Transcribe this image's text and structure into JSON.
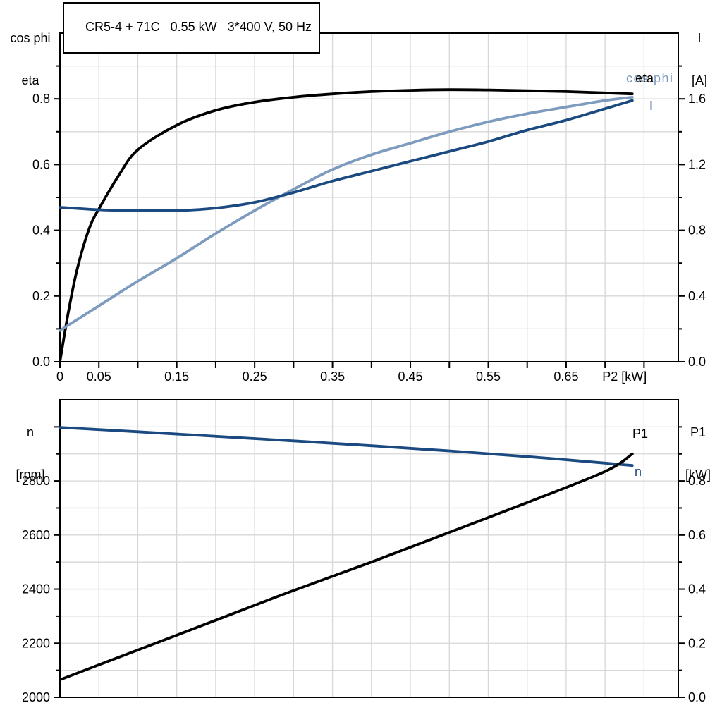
{
  "colors": {
    "black": "#000000",
    "light_blue": "#7d9bbe",
    "dark_blue": "#1a4a80",
    "grid": "#d7d7d7",
    "background": "#ffffff"
  },
  "labels": {
    "top_left_line1": "cos phi",
    "top_left_line2": "eta",
    "top_right_line1": "I",
    "top_right_line2": "[A]",
    "bottom_left_line1": "n",
    "bottom_left_line2": "[rpm]",
    "bottom_right_line1": "P1",
    "bottom_right_line2": "[kW]",
    "curve_cos_phi": "cos phi",
    "curve_eta": "eta",
    "curve_I": "I",
    "curve_P1": "P1",
    "curve_n": "n"
  },
  "chart_data": [
    {
      "type": "line",
      "title": "CR5-4 + 71C   0.55 kW   3*400 V, 50 Hz",
      "x_axis": {
        "label": "P2 [kW]",
        "min": 0,
        "max": 0.794,
        "grid": [
          0.05,
          0.1,
          0.15,
          0.2,
          0.25,
          0.3,
          0.35,
          0.4,
          0.45,
          0.5,
          0.55,
          0.6,
          0.65,
          0.7,
          0.75
        ],
        "ticks": [
          0,
          0.05,
          0.1,
          0.15,
          0.2,
          0.25,
          0.3,
          0.35,
          0.4,
          0.45,
          0.5,
          0.55,
          0.6,
          0.65,
          0.7,
          0.75
        ],
        "labeled": [
          [
            0,
            "0"
          ],
          [
            0.05,
            "0.05"
          ],
          [
            0.15,
            "0.15"
          ],
          [
            0.25,
            "0.25"
          ],
          [
            0.35,
            "0.35"
          ],
          [
            0.45,
            "0.45"
          ],
          [
            0.55,
            "0.55"
          ],
          [
            0.65,
            "0.65"
          ]
        ],
        "show_ticks": true
      },
      "y_left": {
        "label": "cos phi / eta",
        "min": 0,
        "max": 1.0,
        "majors": [
          [
            0,
            "0.0"
          ],
          [
            0.2,
            "0.2"
          ],
          [
            0.4,
            "0.4"
          ],
          [
            0.6,
            "0.6"
          ],
          [
            0.8,
            "0.8"
          ]
        ],
        "minors": [
          0.1,
          0.3,
          0.5,
          0.7,
          0.9
        ],
        "grid": [
          0.1,
          0.2,
          0.3,
          0.4,
          0.5,
          0.6,
          0.7,
          0.8,
          0.9
        ]
      },
      "y_right": {
        "label": "I [A]",
        "min": 0,
        "max": 2.0,
        "majors": [
          [
            0,
            "0.0"
          ],
          [
            0.4,
            "0.4"
          ],
          [
            0.8,
            "0.8"
          ],
          [
            1.2,
            "1.2"
          ],
          [
            1.6,
            "1.6"
          ]
        ],
        "minors": [
          0.2,
          0.6,
          1.0,
          1.4,
          1.8
        ]
      },
      "series": [
        {
          "name": "eta",
          "axis": "left",
          "color": "#000000",
          "x": [
            0,
            0.01,
            0.02,
            0.03,
            0.04,
            0.05,
            0.075,
            0.1,
            0.15,
            0.2,
            0.25,
            0.3,
            0.35,
            0.4,
            0.45,
            0.5,
            0.55,
            0.6,
            0.65,
            0.7,
            0.735
          ],
          "y": [
            0,
            0.14,
            0.26,
            0.35,
            0.42,
            0.465,
            0.565,
            0.645,
            0.72,
            0.765,
            0.79,
            0.805,
            0.815,
            0.822,
            0.826,
            0.828,
            0.827,
            0.825,
            0.822,
            0.818,
            0.815
          ]
        },
        {
          "name": "cos phi",
          "axis": "left",
          "color": "#7d9bbe",
          "x": [
            0,
            0.05,
            0.1,
            0.15,
            0.2,
            0.25,
            0.3,
            0.35,
            0.4,
            0.45,
            0.5,
            0.55,
            0.6,
            0.65,
            0.7,
            0.735
          ],
          "y": [
            0.095,
            0.17,
            0.245,
            0.315,
            0.39,
            0.46,
            0.525,
            0.585,
            0.63,
            0.665,
            0.7,
            0.73,
            0.755,
            0.775,
            0.795,
            0.805
          ]
        },
        {
          "name": "I",
          "axis": "right",
          "color": "#1a4a80",
          "x": [
            0,
            0.05,
            0.1,
            0.15,
            0.2,
            0.25,
            0.3,
            0.35,
            0.4,
            0.45,
            0.5,
            0.55,
            0.6,
            0.65,
            0.7,
            0.735
          ],
          "y": [
            0.94,
            0.925,
            0.92,
            0.92,
            0.935,
            0.97,
            1.03,
            1.1,
            1.16,
            1.22,
            1.28,
            1.34,
            1.41,
            1.47,
            1.54,
            1.59
          ]
        }
      ]
    },
    {
      "type": "line",
      "title": "",
      "x_axis": {
        "label": "",
        "min": 0,
        "max": 0.794,
        "grid": [
          0.05,
          0.1,
          0.15,
          0.2,
          0.25,
          0.3,
          0.35,
          0.4,
          0.45,
          0.5,
          0.55,
          0.6,
          0.65,
          0.7,
          0.75
        ],
        "ticks": [],
        "labeled": [],
        "show_ticks": false
      },
      "y_left": {
        "label": "n [rpm]",
        "min": 2000,
        "max": 3100,
        "majors": [
          [
            2000,
            "2000"
          ],
          [
            2200,
            "2200"
          ],
          [
            2400,
            "2400"
          ],
          [
            2600,
            "2600"
          ],
          [
            2800,
            "2800"
          ],
          [
            3000,
            ""
          ]
        ],
        "minors": [
          2100,
          2300,
          2500,
          2700,
          2900
        ],
        "grid": [
          2100,
          2200,
          2300,
          2400,
          2500,
          2600,
          2700,
          2800,
          2900,
          3000
        ]
      },
      "y_right": {
        "label": "P1 [kW]",
        "min": 0,
        "max": 1.1,
        "majors": [
          [
            0,
            "0.0"
          ],
          [
            0.2,
            "0.2"
          ],
          [
            0.4,
            "0.4"
          ],
          [
            0.6,
            "0.6"
          ],
          [
            0.8,
            "0.8"
          ]
        ],
        "minors": [
          0.1,
          0.3,
          0.5,
          0.7,
          0.9,
          1.0
        ]
      },
      "series": [
        {
          "name": "n",
          "axis": "left",
          "color": "#1a4a80",
          "x": [
            0,
            0.1,
            0.2,
            0.3,
            0.4,
            0.5,
            0.6,
            0.7,
            0.735
          ],
          "y": [
            2998,
            2982,
            2965,
            2948,
            2930,
            2911,
            2890,
            2866,
            2857
          ]
        },
        {
          "name": "P1",
          "axis": "right",
          "color": "#000000",
          "x": [
            0,
            0.1,
            0.2,
            0.3,
            0.4,
            0.5,
            0.6,
            0.7,
            0.735
          ],
          "y": [
            0.065,
            0.175,
            0.285,
            0.395,
            0.5,
            0.61,
            0.72,
            0.835,
            0.9
          ]
        }
      ]
    }
  ]
}
